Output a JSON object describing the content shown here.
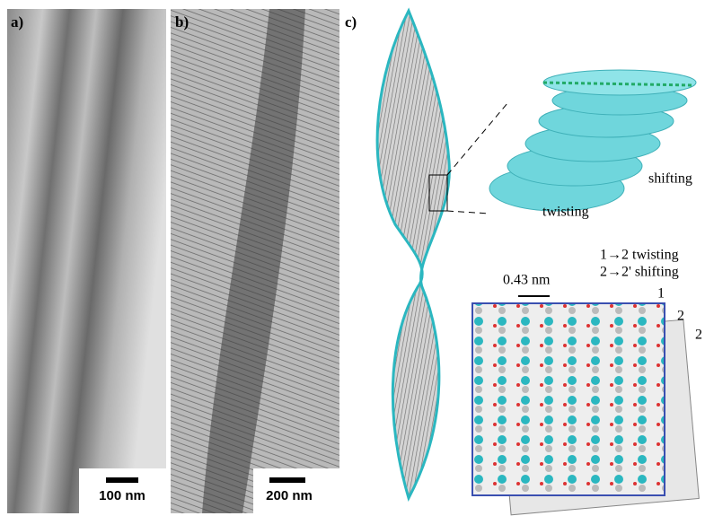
{
  "panels": [
    {
      "label": "a)",
      "scale_bar": "100 nm"
    },
    {
      "label": "b)",
      "scale_bar": "200 nm"
    },
    {
      "label": "c)"
    }
  ],
  "annotations": {
    "twisting": "twisting",
    "shifting": "shifting",
    "legend_twisting": "1→2 twisting",
    "legend_shifting": "2→2' shifting",
    "spacing": "0.43 nm",
    "layer_1": "1",
    "layer_2": "2",
    "layer_2_prime": "2"
  }
}
